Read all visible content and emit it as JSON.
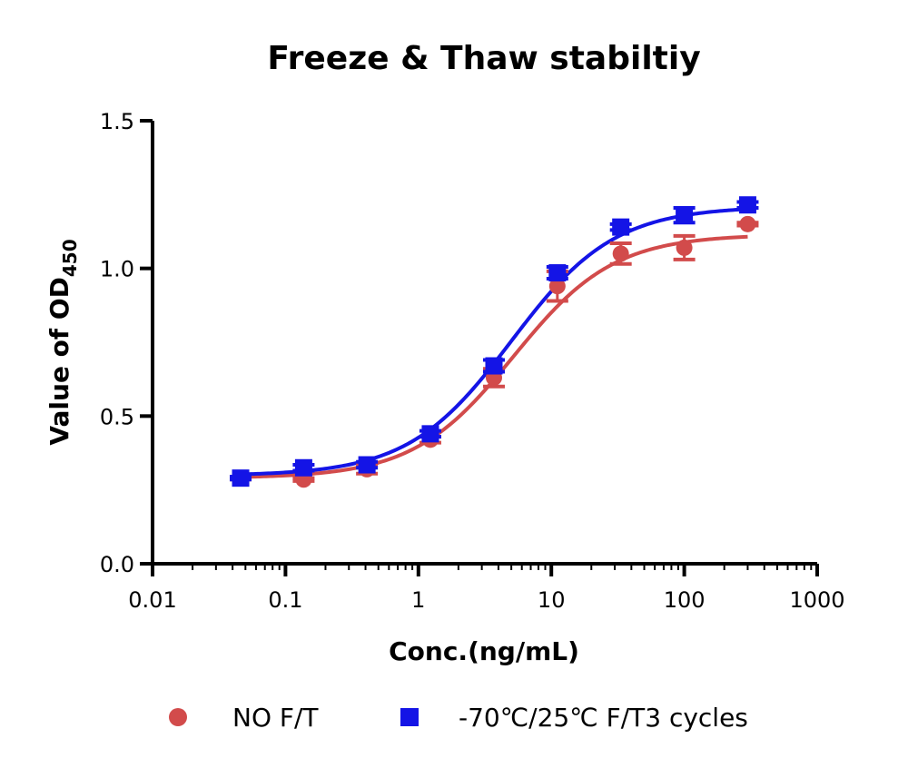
{
  "chart_data": {
    "type": "scatter",
    "title": "Freeze & Thaw stabiltiy",
    "xlabel": "Conc.(ng/mL)",
    "ylabel": "Value of OD",
    "ylabel_sub": "450",
    "x_scale": "log",
    "xlim": [
      0.01,
      1000
    ],
    "ylim": [
      0,
      1.5
    ],
    "x_ticks": [
      "0.01",
      "0.1",
      "1",
      "10",
      "100",
      "1000"
    ],
    "y_ticks": [
      "0.0",
      "0.5",
      "1.0",
      "1.5"
    ],
    "grid": false,
    "legend_position": "bottom",
    "series": [
      {
        "name": "NO F/T",
        "color": "#d24b4b",
        "marker": "circle",
        "x": [
          0.046,
          0.137,
          0.41,
          1.23,
          3.7,
          11.1,
          33.3,
          100,
          300
        ],
        "y": [
          0.29,
          0.285,
          0.32,
          0.42,
          0.63,
          0.94,
          1.05,
          1.07,
          1.15
        ],
        "error": [
          0.005,
          0.005,
          0.015,
          0.01,
          0.03,
          0.05,
          0.035,
          0.04,
          0.005
        ],
        "fit": {
          "bottom": 0.29,
          "top": 1.115,
          "ec50": 5.2,
          "hill": 1.15
        }
      },
      {
        "name": "-70℃/25℃ F/T3 cycles",
        "color": "#1414e6",
        "marker": "square",
        "x": [
          0.046,
          0.137,
          0.41,
          1.23,
          3.7,
          11.1,
          33.3,
          100,
          300
        ],
        "y": [
          0.29,
          0.325,
          0.335,
          0.44,
          0.67,
          0.985,
          1.14,
          1.18,
          1.215
        ],
        "error": [
          0.005,
          0.01,
          0.01,
          0.01,
          0.02,
          0.02,
          0.01,
          0.025,
          0.01
        ],
        "fit": {
          "bottom": 0.298,
          "top": 1.21,
          "ec50": 5.0,
          "hill": 1.12
        }
      }
    ]
  }
}
